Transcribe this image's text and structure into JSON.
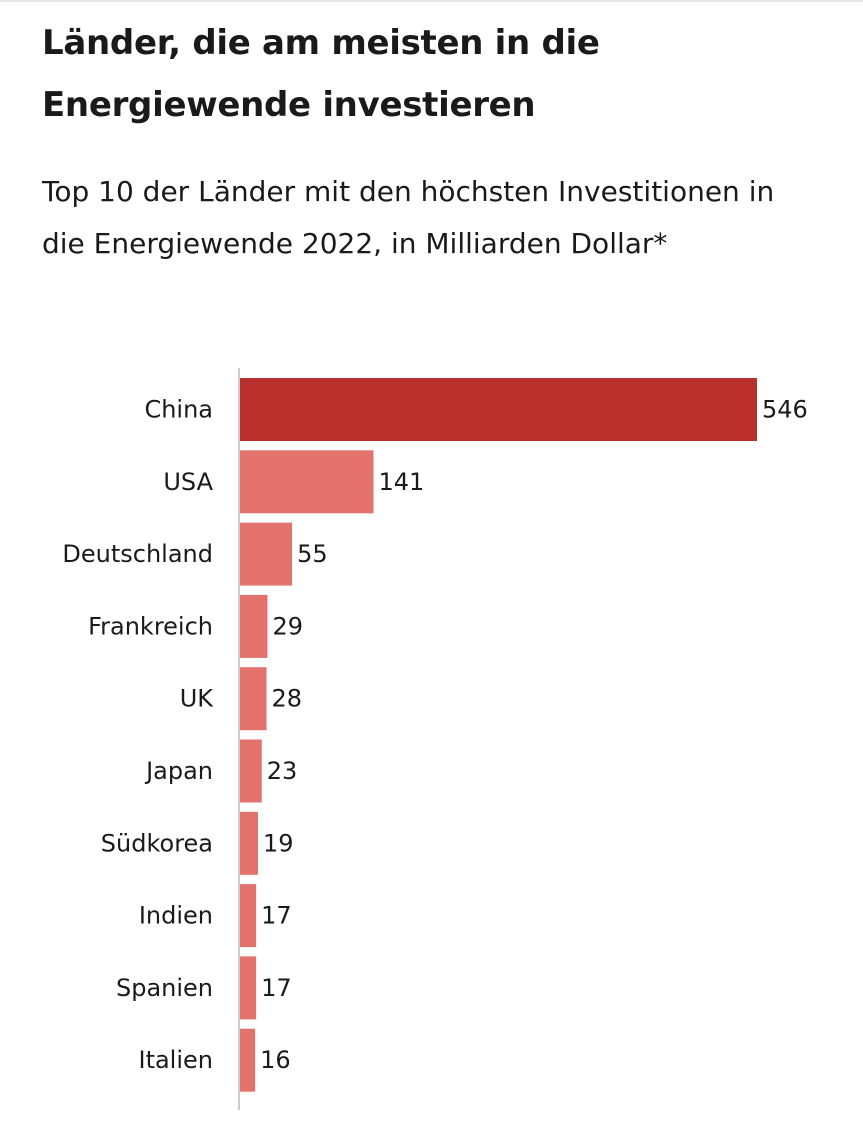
{
  "chart_data": {
    "type": "bar",
    "orientation": "horizontal",
    "title": "Länder, die am meisten in die Energiewende investieren",
    "subtitle": "Top 10 der Länder mit den höchsten Investitionen in die Energiewende 2022, in Milliarden Dollar*",
    "categories": [
      "China",
      "USA",
      "Deutschland",
      "Frankreich",
      "UK",
      "Japan",
      "Südkorea",
      "Indien",
      "Spanien",
      "Italien"
    ],
    "values": [
      546,
      141,
      55,
      29,
      28,
      23,
      19,
      17,
      17,
      16
    ],
    "xlim": [
      0,
      546
    ],
    "xlabel": "",
    "ylabel": "",
    "grid": false,
    "colors": {
      "highlight": "#b82f2c",
      "default": "#e3716c",
      "axis": "#cccccc"
    }
  }
}
